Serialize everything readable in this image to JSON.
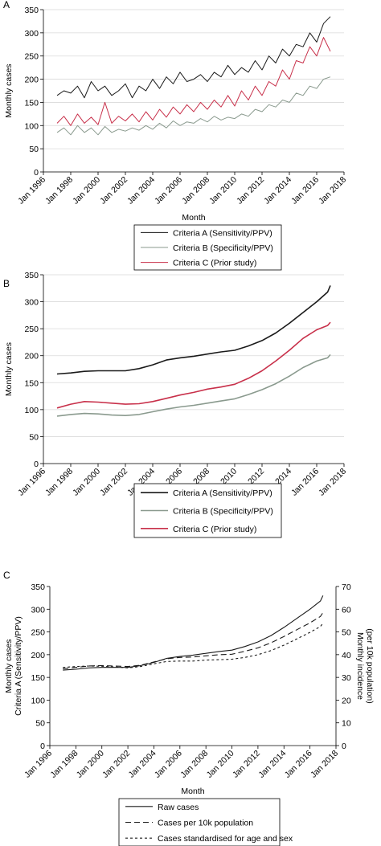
{
  "panels": [
    {
      "label": "A",
      "chart_data": {
        "type": "line",
        "xlabel": "Month",
        "ylabel": "Monthly cases",
        "xlim": [
          1996,
          2018
        ],
        "ylim": [
          0,
          350
        ],
        "xticks": [
          1996,
          1998,
          2000,
          2002,
          2004,
          2006,
          2008,
          2010,
          2012,
          2014,
          2016,
          2018
        ],
        "xtick_labels": [
          "Jan 1996",
          "Jan 1998",
          "Jan 2000",
          "Jan 2002",
          "Jan 2004",
          "Jan 2006",
          "Jan 2008",
          "Jan 2010",
          "Jan 2012",
          "Jan 2014",
          "Jan 2016",
          "Jan 2018"
        ],
        "yticks": [
          0,
          50,
          100,
          150,
          200,
          250,
          300,
          350
        ],
        "ytick_labels": [
          "0",
          "50",
          "100",
          "150",
          "200",
          "250",
          "300",
          "350"
        ],
        "grid": true,
        "legend_position": "bottom",
        "x": [
          1997.0,
          1997.5,
          1998.0,
          1998.5,
          1999.0,
          1999.5,
          2000.0,
          2000.5,
          2001.0,
          2001.5,
          2002.0,
          2002.5,
          2003.0,
          2003.5,
          2004.0,
          2004.5,
          2005.0,
          2005.5,
          2006.0,
          2006.5,
          2007.0,
          2007.5,
          2008.0,
          2008.5,
          2009.0,
          2009.5,
          2010.0,
          2010.5,
          2011.0,
          2011.5,
          2012.0,
          2012.5,
          2013.0,
          2013.5,
          2014.0,
          2014.5,
          2015.0,
          2015.5,
          2016.0,
          2016.5,
          2017.0
        ],
        "series": [
          {
            "name": "Criteria A (Sensitivity/PPV)",
            "color": "#1a1a1a",
            "width": 1.0,
            "dash": "",
            "values": [
              165,
              175,
              170,
              185,
              160,
              195,
              175,
              185,
              165,
              175,
              190,
              160,
              185,
              175,
              200,
              180,
              205,
              190,
              215,
              195,
              200,
              210,
              195,
              215,
              205,
              230,
              210,
              225,
              215,
              240,
              220,
              250,
              235,
              265,
              250,
              275,
              270,
              300,
              280,
              320,
              335
            ]
          },
          {
            "name": "Criteria B (Specificity/PPV)",
            "color": "#8a9a8e",
            "width": 1.0,
            "dash": "",
            "values": [
              85,
              95,
              80,
              100,
              85,
              95,
              80,
              98,
              85,
              92,
              88,
              95,
              90,
              100,
              92,
              105,
              95,
              110,
              100,
              108,
              105,
              115,
              108,
              120,
              112,
              118,
              115,
              125,
              120,
              135,
              130,
              145,
              140,
              155,
              150,
              170,
              165,
              185,
              180,
              200,
              205
            ]
          },
          {
            "name": "Criteria C (Prior study)",
            "color": "#c8304a",
            "width": 1.0,
            "dash": "",
            "values": [
              105,
              120,
              100,
              125,
              105,
              118,
              102,
              150,
              105,
              120,
              110,
              125,
              108,
              130,
              112,
              135,
              118,
              140,
              125,
              145,
              130,
              150,
              135,
              155,
              140,
              165,
              142,
              175,
              155,
              185,
              165,
              195,
              185,
              220,
              200,
              240,
              235,
              270,
              250,
              290,
              260
            ]
          }
        ]
      }
    },
    {
      "label": "B",
      "chart_data": {
        "type": "line",
        "xlabel": "Month",
        "ylabel": "Monthly cases",
        "xlim": [
          1996,
          2018
        ],
        "ylim": [
          0,
          350
        ],
        "xticks": [
          1996,
          1998,
          2000,
          2002,
          2004,
          2006,
          2008,
          2010,
          2012,
          2014,
          2016,
          2018
        ],
        "xtick_labels": [
          "Jan 1996",
          "Jan 1998",
          "Jan 2000",
          "Jan 2002",
          "Jan 2004",
          "Jan 2006",
          "Jan 2008",
          "Jan 2010",
          "Jan 2012",
          "Jan 2014",
          "Jan 2016",
          "Jan 2018"
        ],
        "yticks": [
          0,
          50,
          100,
          150,
          200,
          250,
          300,
          350
        ],
        "ytick_labels": [
          "0",
          "50",
          "100",
          "150",
          "200",
          "250",
          "300",
          "350"
        ],
        "grid": true,
        "legend_position": "bottom",
        "x": [
          1997.0,
          1998.0,
          1999.0,
          2000.0,
          2001.0,
          2002.0,
          2003.0,
          2004.0,
          2005.0,
          2006.0,
          2007.0,
          2008.0,
          2009.0,
          2010.0,
          2011.0,
          2012.0,
          2013.0,
          2014.0,
          2015.0,
          2016.0,
          2016.8,
          2017.0
        ],
        "series": [
          {
            "name": "Criteria A (Sensitivity/PPV)",
            "color": "#1a1a1a",
            "width": 1.6,
            "dash": "",
            "values": [
              166,
              168,
              171,
              172,
              172,
              172,
              176,
              183,
              192,
              196,
              199,
              203,
              207,
              210,
              218,
              228,
              242,
              260,
              280,
              300,
              318,
              330
            ]
          },
          {
            "name": "Criteria B (Specificity/PPV)",
            "color": "#8a9a8e",
            "width": 1.6,
            "dash": "",
            "values": [
              88,
              91,
              93,
              92,
              90,
              89,
              91,
              96,
              101,
              105,
              108,
              112,
              116,
              120,
              128,
              137,
              148,
              162,
              178,
              190,
              196,
              202
            ]
          },
          {
            "name": "Criteria C (Prior study)",
            "color": "#c8304a",
            "width": 1.6,
            "dash": "",
            "values": [
              103,
              110,
              115,
              114,
              112,
              110,
              111,
              115,
              121,
              127,
              132,
              138,
              142,
              147,
              158,
              172,
              190,
              210,
              232,
              248,
              256,
              262
            ]
          }
        ]
      }
    },
    {
      "label": "C",
      "chart_data": {
        "type": "line",
        "xlabel": "Month",
        "ylabel": "Monthly cases",
        "ylabel2": "Criteria A (Sensitivity/PPV)",
        "y2label": "Monthly incidence",
        "y2label2": "(per 10k population)",
        "xlim": [
          1996,
          2018
        ],
        "ylim": [
          0,
          350
        ],
        "y2lim": [
          0,
          70
        ],
        "xticks": [
          1996,
          1998,
          2000,
          2002,
          2004,
          2006,
          2008,
          2010,
          2012,
          2014,
          2016,
          2018
        ],
        "xtick_labels": [
          "Jan 1996",
          "Jan 1998",
          "Jan 2000",
          "Jan 2002",
          "Jan 2004",
          "Jan 2006",
          "Jan 2008",
          "Jan 2010",
          "Jan 2012",
          "Jan 2014",
          "Jan 2016",
          "Jan 2018"
        ],
        "yticks": [
          0,
          50,
          100,
          150,
          200,
          250,
          300,
          350
        ],
        "ytick_labels": [
          "0",
          "50",
          "100",
          "150",
          "200",
          "250",
          "300",
          "350"
        ],
        "y2ticks": [
          0,
          10,
          20,
          30,
          40,
          50,
          60,
          70
        ],
        "y2tick_labels": [
          "0",
          "10",
          "20",
          "30",
          "40",
          "50",
          "60",
          "70"
        ],
        "grid": false,
        "legend_position": "bottom",
        "x": [
          1997.0,
          1998.0,
          1999.0,
          2000.0,
          2001.0,
          2002.0,
          2003.0,
          2004.0,
          2005.0,
          2006.0,
          2007.0,
          2008.0,
          2009.0,
          2010.0,
          2011.0,
          2012.0,
          2013.0,
          2014.0,
          2015.0,
          2016.0,
          2016.8,
          2017.0
        ],
        "series": [
          {
            "name": "Raw cases",
            "axis": "left",
            "color": "#1a1a1a",
            "width": 1.1,
            "dash": "",
            "values": [
              166,
              168,
              171,
              172,
              172,
              172,
              176,
              183,
              192,
              196,
              199,
              203,
              207,
              210,
              218,
              228,
              242,
              260,
              280,
              300,
              318,
              330
            ]
          },
          {
            "name": "Cases per 10k population",
            "axis": "right",
            "color": "#1a1a1a",
            "width": 1.1,
            "dash": "7,4",
            "values": [
              33.8,
              34.4,
              35.0,
              35.2,
              35.0,
              34.8,
              35.4,
              36.8,
              38.2,
              38.8,
              39.0,
              39.5,
              40.0,
              40.2,
              41.5,
              43.0,
              45.2,
              48.0,
              51.0,
              54.0,
              56.8,
              58.5
            ]
          },
          {
            "name": "Cases standardised for age and sex",
            "axis": "right",
            "color": "#1a1a1a",
            "width": 1.1,
            "dash": "3,3",
            "values": [
              34.4,
              34.8,
              35.0,
              34.9,
              34.6,
              34.2,
              34.8,
              36.0,
              37.0,
              37.2,
              37.2,
              37.6,
              37.8,
              38.0,
              38.8,
              40.0,
              41.8,
              44.2,
              47.0,
              49.8,
              52.4,
              53.8
            ]
          }
        ]
      }
    }
  ]
}
